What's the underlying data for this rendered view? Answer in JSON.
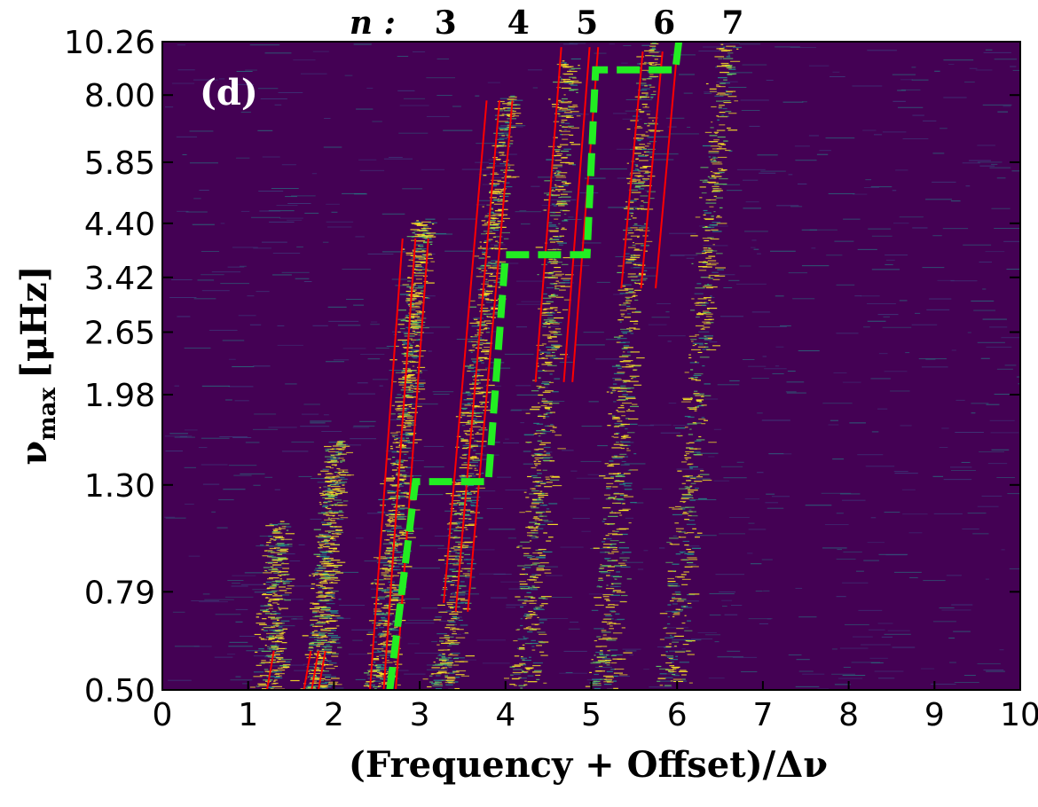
{
  "chart_data": {
    "type": "heatmap",
    "panel_label": "(d)",
    "xlabel": "(Frequency + Offset)/Δν",
    "ylabel": "ν",
    "ylabel_sub": "max",
    "ylabel_unit": "[μHz]",
    "xlim": [
      0,
      10
    ],
    "x_ticks": [
      0,
      1,
      2,
      3,
      4,
      5,
      6,
      7,
      8,
      9,
      10
    ],
    "y_tick_labels": [
      "0.50",
      "0.79",
      "1.30",
      "1.98",
      "2.65",
      "3.42",
      "4.40",
      "5.85",
      "8.00",
      "10.26"
    ],
    "y_scale": "log",
    "order_prefix": "n :",
    "orders": [
      {
        "label": "3",
        "x": 3.3
      },
      {
        "label": "4",
        "x": 4.15
      },
      {
        "label": "5",
        "x": 4.95
      },
      {
        "label": "6",
        "x": 5.85
      },
      {
        "label": "7",
        "x": 6.65
      }
    ],
    "background_color": "#440154",
    "ridge_color": "#fde725",
    "ridges": [
      {
        "x_bottom": 1.25,
        "x_top": 1.3,
        "y_top": 1.1,
        "strength": 0.35
      },
      {
        "x_bottom": 1.78,
        "x_top": 2.0,
        "y_top": 1.6,
        "strength": 0.6
      },
      {
        "x_bottom": 2.5,
        "x_top": 3.0,
        "y_top": 4.5,
        "strength": 0.9
      },
      {
        "x_bottom": 3.25,
        "x_top": 4.0,
        "y_top": 8.0,
        "strength": 0.85
      },
      {
        "x_bottom": 4.2,
        "x_top": 4.7,
        "y_top": 9.5,
        "strength": 0.75
      },
      {
        "x_bottom": 5.1,
        "x_top": 5.65,
        "y_top": 10.26,
        "strength": 0.7
      },
      {
        "x_bottom": 5.9,
        "x_top": 6.55,
        "y_top": 10.26,
        "strength": 0.6
      }
    ],
    "red_lines": [
      {
        "x0": 1.22,
        "y0": 0.5,
        "x1": 1.3,
        "y1": 0.6
      },
      {
        "x0": 1.65,
        "y0": 0.5,
        "x1": 1.73,
        "y1": 0.6
      },
      {
        "x0": 1.74,
        "y0": 0.5,
        "x1": 1.82,
        "y1": 0.6
      },
      {
        "x0": 1.82,
        "y0": 0.5,
        "x1": 1.9,
        "y1": 0.6
      },
      {
        "x0": 2.42,
        "y0": 0.5,
        "x1": 2.8,
        "y1": 4.1
      },
      {
        "x0": 2.58,
        "y0": 0.5,
        "x1": 2.95,
        "y1": 4.1
      },
      {
        "x0": 2.72,
        "y0": 0.5,
        "x1": 3.1,
        "y1": 4.1
      },
      {
        "x0": 3.28,
        "y0": 0.75,
        "x1": 3.78,
        "y1": 7.8
      },
      {
        "x0": 3.42,
        "y0": 0.72,
        "x1": 3.93,
        "y1": 7.8
      },
      {
        "x0": 3.56,
        "y0": 0.72,
        "x1": 4.08,
        "y1": 7.8
      },
      {
        "x0": 4.35,
        "y0": 2.1,
        "x1": 4.65,
        "y1": 10.0
      },
      {
        "x0": 4.68,
        "y0": 2.1,
        "x1": 4.98,
        "y1": 10.0
      },
      {
        "x0": 4.78,
        "y0": 2.1,
        "x1": 5.08,
        "y1": 10.0
      },
      {
        "x0": 5.35,
        "y0": 3.25,
        "x1": 5.6,
        "y1": 9.8
      },
      {
        "x0": 5.58,
        "y0": 3.25,
        "x1": 5.83,
        "y1": 9.8
      },
      {
        "x0": 5.75,
        "y0": 3.25,
        "x1": 6.0,
        "y1": 9.8
      }
    ],
    "green_boundary": [
      [
        2.65,
        0.5
      ],
      [
        2.95,
        1.32
      ],
      [
        3.8,
        1.32
      ],
      [
        4.0,
        3.8
      ],
      [
        4.95,
        3.8
      ],
      [
        5.05,
        9.0
      ],
      [
        5.98,
        9.0
      ],
      [
        6.02,
        10.26
      ]
    ],
    "red_color": "#ff0000",
    "green_color": "#22ee22"
  }
}
